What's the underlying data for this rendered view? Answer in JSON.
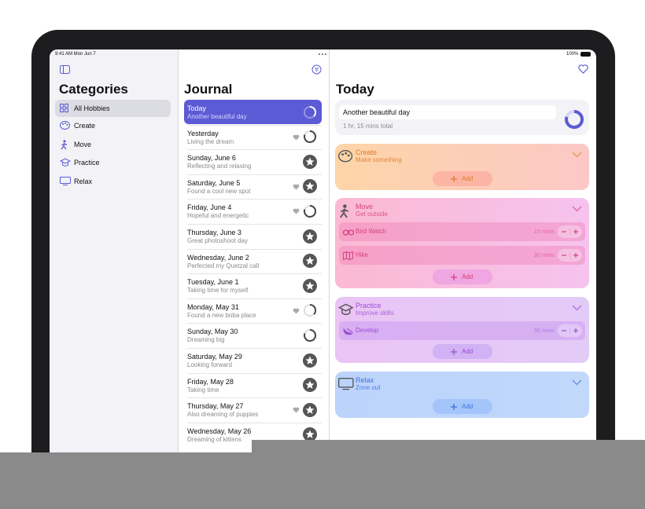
{
  "status_bar": {
    "time": "9:41 AM  Mon Jun 7",
    "battery": "100%"
  },
  "sidebar": {
    "title": "Categories",
    "items": [
      "All Hobbies",
      "Create",
      "Move",
      "Practice",
      "Relax"
    ]
  },
  "journal": {
    "title": "Journal",
    "entries": [
      {
        "title": "Today",
        "subtitle": "Another beautiful day"
      },
      {
        "title": "Yesterday",
        "subtitle": "Living the dream"
      },
      {
        "title": "Sunday, June 6",
        "subtitle": "Reflecting and relaxing"
      },
      {
        "title": "Saturday, June 5",
        "subtitle": "Found a cool new spot"
      },
      {
        "title": "Friday, June 4",
        "subtitle": "Hopeful and energetic"
      },
      {
        "title": "Thursday, June 3",
        "subtitle": "Great photoshoot day"
      },
      {
        "title": "Wednesday, June 2",
        "subtitle": "Perfected my Quetzal call"
      },
      {
        "title": "Tuesday, June 1",
        "subtitle": "Taking time for myself"
      },
      {
        "title": "Monday, May 31",
        "subtitle": "Found a new boba place"
      },
      {
        "title": "Sunday, May 30",
        "subtitle": "Dreaming big"
      },
      {
        "title": "Saturday, May 29",
        "subtitle": "Looking forward"
      },
      {
        "title": "Friday, May 28",
        "subtitle": "Taking time"
      },
      {
        "title": "Thursday, May 27",
        "subtitle": "Also dreaming of puppies"
      },
      {
        "title": "Wednesday, May 26",
        "subtitle": "Dreaming of kittens"
      }
    ]
  },
  "today": {
    "title": "Today",
    "note": "Another beautiful day",
    "total": "1 hr, 15 mins total",
    "categories": [
      {
        "name": "Create",
        "subtitle": "Make something",
        "activities": [],
        "add": "Add"
      },
      {
        "name": "Move",
        "subtitle": "Get outside",
        "activities": [
          {
            "name": "Bird Watch",
            "duration": "15 mins"
          },
          {
            "name": "Hike",
            "duration": "30 mins"
          }
        ],
        "add": "Add"
      },
      {
        "name": "Practice",
        "subtitle": "Improve skills",
        "activities": [
          {
            "name": "Develop",
            "duration": "30 mins"
          }
        ],
        "add": "Add"
      },
      {
        "name": "Relax",
        "subtitle": "Zone out",
        "activities": [],
        "add": "Add"
      }
    ]
  }
}
